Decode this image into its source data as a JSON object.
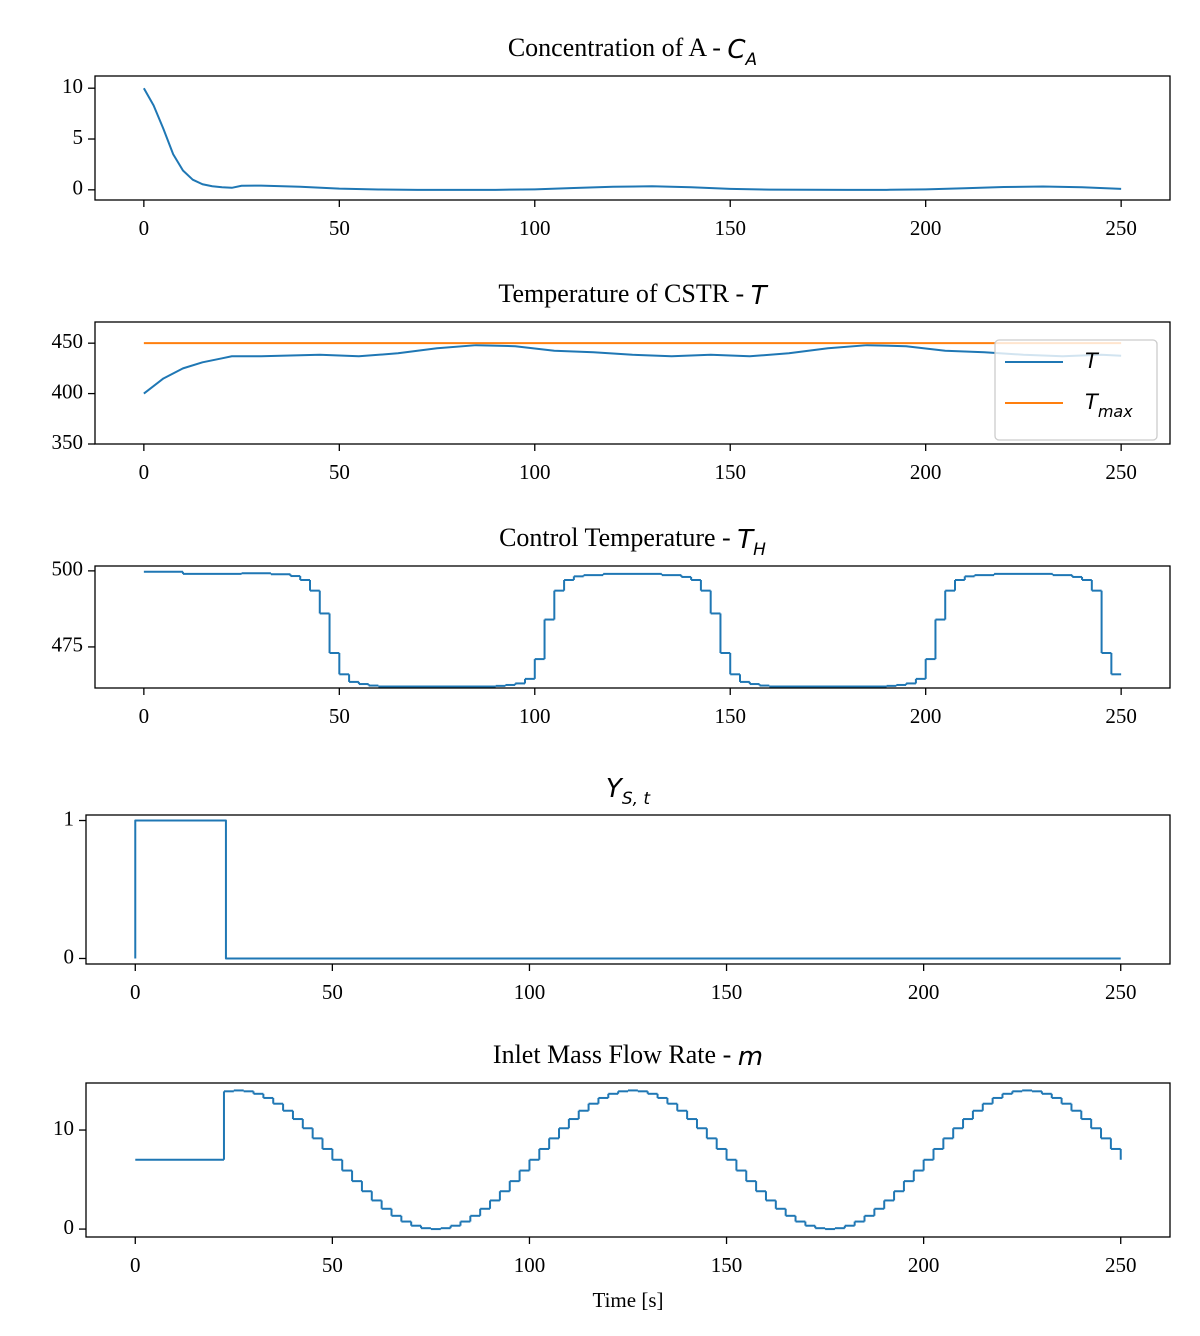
{
  "chart_data": [
    {
      "type": "line",
      "title": "Concentration of A -",
      "title_math": {
        "base": "C",
        "sub": "A"
      },
      "xlim": [
        -12.5,
        262.5
      ],
      "xticks": [
        0,
        50,
        100,
        150,
        200,
        250
      ],
      "ylim": [
        -1,
        11.2
      ],
      "yticks": [
        0,
        5,
        10
      ],
      "series": [
        {
          "color": "#1f77b4",
          "x": [
            0,
            2.5,
            5,
            7.5,
            10,
            12.5,
            15,
            17.5,
            20,
            22.5,
            25,
            30,
            40,
            50,
            60,
            70,
            90,
            100,
            110,
            120,
            130,
            140,
            150,
            160,
            180,
            190,
            200,
            210,
            220,
            230,
            240,
            250
          ],
          "values": [
            10,
            8.3,
            6,
            3.5,
            1.9,
            1.0,
            0.55,
            0.35,
            0.25,
            0.2,
            0.4,
            0.42,
            0.3,
            0.12,
            0.03,
            0,
            0,
            0.05,
            0.18,
            0.3,
            0.35,
            0.25,
            0.1,
            0.02,
            0,
            0,
            0.05,
            0.15,
            0.28,
            0.33,
            0.25,
            0.1
          ]
        }
      ]
    },
    {
      "type": "line",
      "title": "Temperature of CSTR -",
      "title_math": {
        "base": "T"
      },
      "xlim": [
        -12.5,
        262.5
      ],
      "xticks": [
        0,
        50,
        100,
        150,
        200,
        250
      ],
      "ylim": [
        350,
        471
      ],
      "yticks": [
        350,
        400,
        450
      ],
      "legend": "upper right",
      "series": [
        {
          "name": "T",
          "color": "#1f77b4",
          "x": [
            0,
            5,
            10,
            15,
            20,
            22.5,
            30,
            40,
            45,
            55,
            65,
            75,
            85,
            95,
            105,
            115,
            125,
            135,
            145,
            155,
            165,
            175,
            185,
            195,
            205,
            215,
            225,
            235,
            245,
            250
          ],
          "values": [
            400,
            415,
            425,
            431,
            435,
            437,
            437,
            438,
            438.5,
            437,
            440,
            445,
            448,
            447,
            442.5,
            441,
            438.5,
            437,
            438.5,
            437,
            440,
            445,
            448,
            447,
            442.5,
            441,
            438.5,
            437,
            438.5,
            437.5
          ]
        },
        {
          "name": "T",
          "name_sub": "max",
          "color": "#ff7f0e",
          "x": [
            0,
            250
          ],
          "values": [
            450,
            450
          ]
        }
      ]
    },
    {
      "type": "line",
      "drawstyle": "steps-post",
      "title": "Control Temperature -",
      "title_math": {
        "base": "T",
        "sub": "H"
      },
      "xlim": [
        -12.5,
        262.5
      ],
      "xticks": [
        0,
        50,
        100,
        150,
        200,
        250
      ],
      "ylim": [
        461.5,
        501.6
      ],
      "yticks": [
        475,
        500
      ],
      "series": [
        {
          "color": "#1f77b4",
          "x": [
            0,
            10,
            25,
            32.5,
            37.5,
            40,
            42.5,
            45,
            47.5,
            50,
            52.5,
            55,
            57.5,
            60,
            90,
            92.5,
            95,
            97.5,
            100,
            102.5,
            105,
            107.5,
            110,
            112.5,
            117.5,
            132.5,
            137.5,
            140,
            142.5,
            145,
            147.5,
            150,
            152.5,
            155,
            157.5,
            160,
            190,
            192.5,
            195,
            197.5,
            200,
            202.5,
            205,
            207.5,
            210,
            212.5,
            217.5,
            232.5,
            237.5,
            240,
            242.5,
            245,
            247.5,
            250
          ],
          "values": [
            499.7,
            499.0,
            499.2,
            498.9,
            498.3,
            497.0,
            493.5,
            486,
            473,
            466,
            463.5,
            462.8,
            462.3,
            462,
            462.2,
            462.5,
            463,
            464.5,
            471,
            484,
            493.5,
            497,
            498.2,
            498.6,
            499,
            498.6,
            498,
            497,
            493.5,
            486,
            473,
            466,
            463.5,
            462.8,
            462.3,
            462,
            462.2,
            462.5,
            463,
            464.5,
            471,
            484,
            493.5,
            497,
            498.2,
            498.6,
            499,
            498.6,
            498,
            497,
            493.5,
            473,
            466,
            466
          ]
        }
      ]
    },
    {
      "type": "line",
      "title_math": {
        "base": "Y",
        "sub": "S, t"
      },
      "xlim": [
        -12.5,
        262.5
      ],
      "xticks": [
        0,
        50,
        100,
        150,
        200,
        250
      ],
      "ylim": [
        -0.04,
        1.04
      ],
      "yticks": [
        0,
        1
      ],
      "series": [
        {
          "color": "#1f77b4",
          "x": [
            0,
            0,
            23,
            23,
            250
          ],
          "values": [
            0,
            1,
            1,
            0,
            0
          ]
        }
      ]
    },
    {
      "type": "line",
      "drawstyle": "steps-post",
      "title": "Inlet Mass Flow Rate -",
      "title_math": {
        "base": "m"
      },
      "xlabel": "Time [s]",
      "xlim": [
        -12.5,
        262.5
      ],
      "xticks": [
        0,
        50,
        100,
        150,
        200,
        250
      ],
      "ylim": [
        -0.8,
        14.75
      ],
      "yticks": [
        0,
        10
      ],
      "series": [
        {
          "color": "#1f77b4",
          "x": [
            0,
            22.5,
            25,
            27.5,
            30,
            32.5,
            35,
            37.5,
            40,
            42.5,
            45,
            47.5,
            50,
            52.5,
            55,
            57.5,
            60,
            62.5,
            65,
            67.5,
            70,
            72.5,
            75,
            77.5,
            80,
            82.5,
            85,
            87.5,
            90,
            92.5,
            95,
            97.5,
            100,
            102.5,
            105,
            107.5,
            110,
            112.5,
            115,
            117.5,
            120,
            122.5,
            125,
            127.5,
            130,
            132.5,
            135,
            137.5,
            140,
            142.5,
            145,
            147.5,
            150,
            152.5,
            155,
            157.5,
            160,
            162.5,
            165,
            167.5,
            170,
            172.5,
            175,
            177.5,
            180,
            182.5,
            185,
            187.5,
            190,
            192.5,
            195,
            197.5,
            200,
            202.5,
            205,
            207.5,
            210,
            212.5,
            215,
            217.5,
            220,
            222.5,
            225,
            227.5,
            230,
            232.5,
            235,
            237.5,
            240,
            242.5,
            245,
            247.5,
            250
          ],
          "values": [
            7,
            13.91,
            14,
            13.91,
            13.66,
            13.24,
            12.66,
            11.95,
            11.11,
            10.18,
            9.16,
            8.09,
            7,
            5.91,
            4.84,
            3.82,
            2.89,
            2.05,
            1.34,
            0.76,
            0.34,
            0.09,
            0,
            0.09,
            0.34,
            0.76,
            1.34,
            2.05,
            2.89,
            3.82,
            4.84,
            5.91,
            7,
            8.09,
            9.16,
            10.18,
            11.11,
            11.95,
            12.66,
            13.24,
            13.66,
            13.91,
            14,
            13.91,
            13.66,
            13.24,
            12.66,
            11.95,
            11.11,
            10.18,
            9.16,
            8.09,
            7,
            5.91,
            4.84,
            3.82,
            2.89,
            2.05,
            1.34,
            0.76,
            0.34,
            0.09,
            0,
            0.09,
            0.34,
            0.76,
            1.34,
            2.05,
            2.89,
            3.82,
            4.84,
            5.91,
            7,
            8.09,
            9.16,
            10.18,
            11.11,
            11.95,
            12.66,
            13.24,
            13.66,
            13.91,
            14,
            13.91,
            13.66,
            13.24,
            12.66,
            11.95,
            11.11,
            10.18,
            9.16,
            8.09,
            7
          ]
        }
      ]
    }
  ]
}
